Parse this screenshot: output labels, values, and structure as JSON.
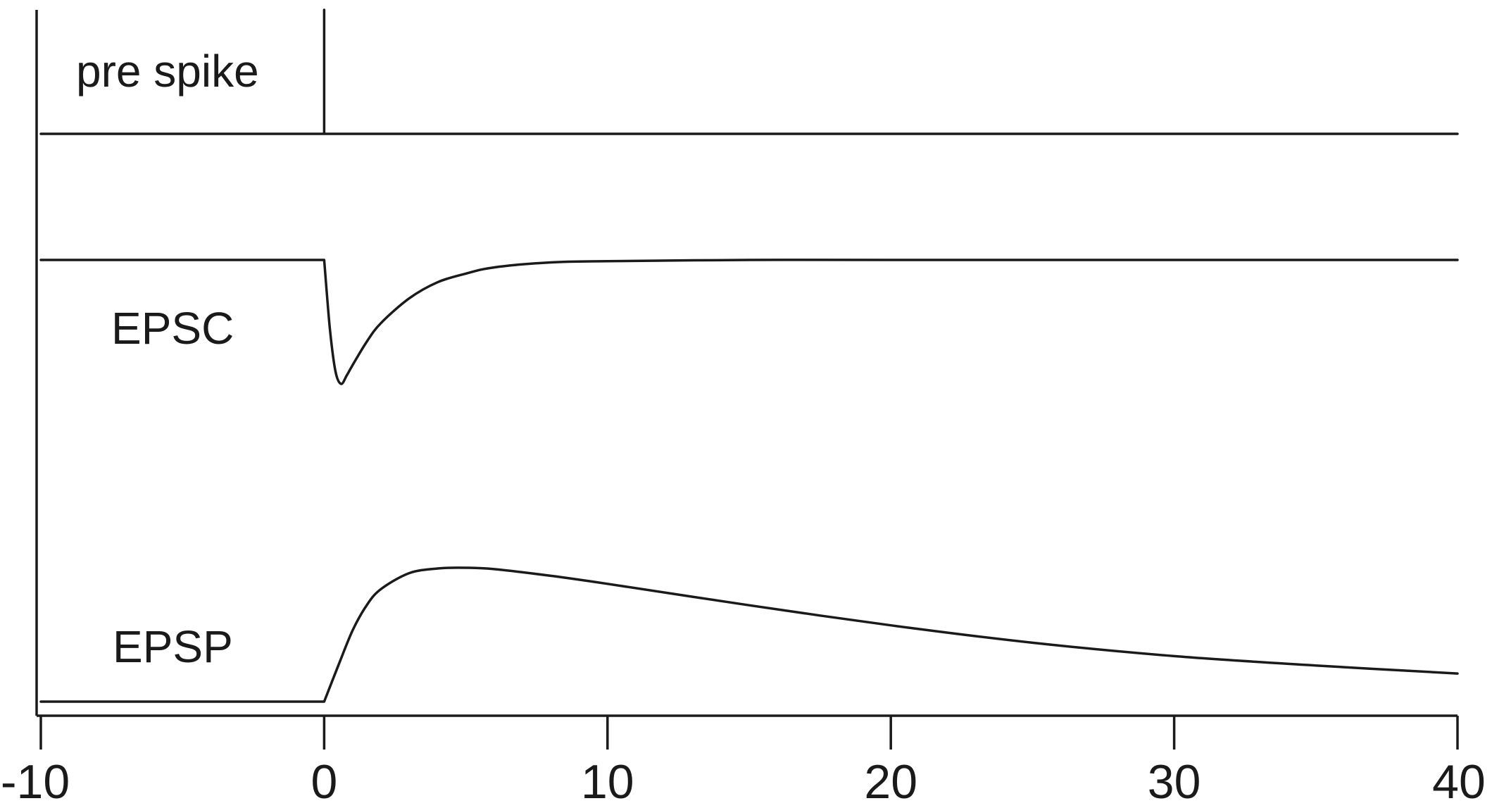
{
  "chart_data": {
    "type": "line",
    "title": "",
    "xlabel": "",
    "ylabel": "",
    "xlim": [
      -10,
      40
    ],
    "xticks": [
      -10,
      0,
      10,
      20,
      30,
      40
    ],
    "xtick_labels": [
      "-10",
      "0",
      "10",
      "20",
      "30",
      "40"
    ],
    "grid": false,
    "legend": "none",
    "series": [
      {
        "name": "pre spike",
        "kind": "spike",
        "spike_time": 0,
        "x": [
          -10,
          0,
          0,
          0,
          40
        ],
        "y": [
          0,
          0,
          1,
          0,
          0
        ]
      },
      {
        "name": "EPSC",
        "kind": "inward current",
        "x": [
          -10,
          0,
          0.2,
          0.4,
          0.6,
          0.8,
          1,
          1.5,
          2,
          3,
          4,
          5,
          6,
          8,
          10,
          15,
          20,
          40
        ],
        "y": [
          0,
          0,
          -0.55,
          -0.9,
          -1.0,
          -0.93,
          -0.85,
          -0.66,
          -0.51,
          -0.31,
          -0.18,
          -0.11,
          -0.06,
          -0.02,
          -0.01,
          0,
          0,
          0
        ]
      },
      {
        "name": "EPSP",
        "kind": "membrane potential",
        "x": [
          -10,
          0,
          0.5,
          1,
          1.5,
          2,
          3,
          4,
          5,
          6,
          8,
          10,
          15,
          20,
          25,
          30,
          35,
          40
        ],
        "y": [
          0,
          0,
          0.27,
          0.53,
          0.72,
          0.84,
          0.96,
          0.995,
          1.0,
          0.99,
          0.94,
          0.88,
          0.72,
          0.57,
          0.44,
          0.34,
          0.27,
          0.21
        ]
      }
    ]
  }
}
